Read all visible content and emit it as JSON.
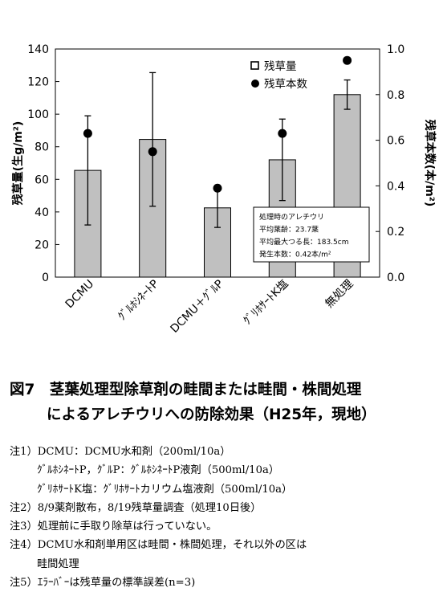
{
  "chart_data": {
    "type": "bar",
    "categories": [
      "DCMU",
      "ｸﾞﾙﾎｼﾈｰﾄP",
      "DCMU＋ｸﾞﾙP",
      "ｸﾞﾘﾎｻｰﾄK塩",
      "無処理"
    ],
    "series": [
      {
        "name": "残草量",
        "axis": "left",
        "values": [
          65.5,
          84.5,
          42.5,
          72.0,
          112.0
        ],
        "error": [
          33.5,
          41.0,
          12.0,
          25.0,
          9.0
        ],
        "color": "#c0c0c0"
      },
      {
        "name": "残草本数",
        "axis": "right",
        "values": [
          0.63,
          0.55,
          0.39,
          0.63,
          0.95
        ],
        "color": "#000000"
      }
    ],
    "ylabel": "残草量(生g/m²)",
    "y2label": "残草本数(本/m²)",
    "ylim": [
      0,
      140
    ],
    "y2lim": [
      0,
      1.0
    ],
    "yticks": [
      "0",
      "20",
      "40",
      "60",
      "80",
      "100",
      "120",
      "140"
    ],
    "y2ticks": [
      "0.0",
      "0.2",
      "0.4",
      "0.6",
      "0.8",
      "1.0"
    ],
    "legend_position": "top-right",
    "grid": false,
    "annotation": [
      "処理時のアレチウリ",
      "平均葉齢：23.7葉",
      "平均最大つる長：183.5cm",
      "発生本数：0.42本/m²"
    ]
  },
  "caption": {
    "line1": "図7　茎葉処理型除草剤の畦間または畦間・株間処理",
    "line2": "によるアレチウリへの防除効果（H25年，現地）"
  },
  "notes": [
    "注1）DCMU：DCMU水和剤（200ml/10a）",
    "ｸﾞﾙﾎｼﾈｰﾄP，ｸﾞﾙP：ｸﾞﾙﾎｼﾈｰﾄP液剤（500ml/10a）",
    "ｸﾞﾘﾎｻｰﾄK塩：ｸﾞﾘﾎｻｰﾄカリウム塩液剤（500ml/10a）",
    "注2）8/9薬剤散布，8/19残草量調査（処理10日後）",
    "注3）処理前に手取り除草は行っていない。",
    "注4）DCMU水和剤単用区は畦間・株間処理，それ以外の区は",
    "畦間処理",
    "注5）ｴﾗｰﾊﾞｰは残草量の標準誤差(n=3)"
  ]
}
